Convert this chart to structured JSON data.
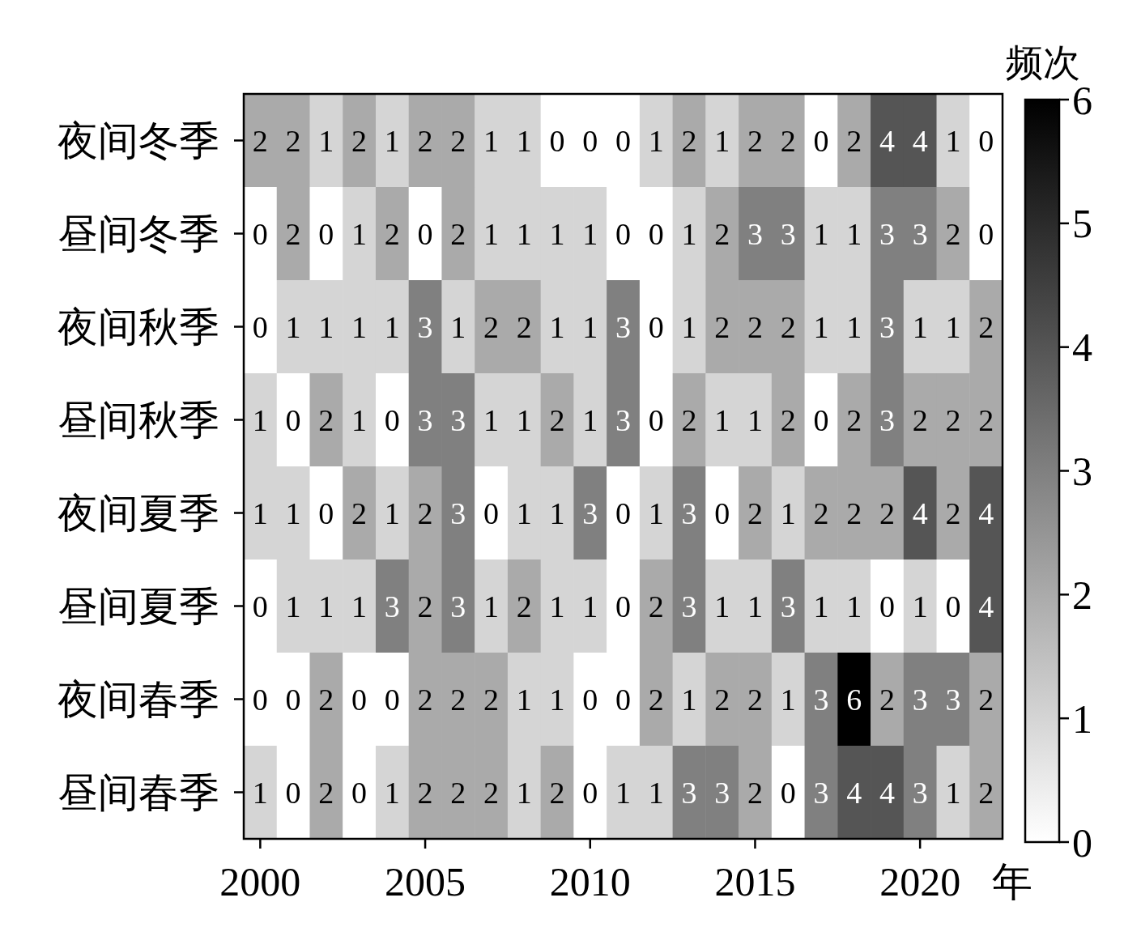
{
  "chart_data": {
    "type": "heatmap",
    "xlabel": "年",
    "clabel": "频次",
    "categories": [
      "2000",
      null,
      null,
      null,
      null,
      "2005",
      null,
      null,
      null,
      null,
      "2010",
      null,
      null,
      null,
      null,
      "2015",
      null,
      null,
      null,
      null,
      "2020",
      null,
      null
    ],
    "y_categories": [
      "夜间冬季",
      "昼间冬季",
      "夜间秋季",
      "昼间秋季",
      "夜间夏季",
      "昼间夏季",
      "夜间春季",
      "昼间春季"
    ],
    "cells": [
      [
        2,
        2,
        1,
        2,
        1,
        2,
        2,
        1,
        1,
        0,
        0,
        0,
        1,
        2,
        1,
        2,
        2,
        0,
        2,
        4,
        4,
        1,
        0
      ],
      [
        0,
        2,
        0,
        1,
        2,
        0,
        2,
        1,
        1,
        1,
        1,
        0,
        0,
        1,
        2,
        3,
        3,
        1,
        1,
        3,
        3,
        2,
        0
      ],
      [
        0,
        1,
        1,
        1,
        1,
        3,
        1,
        2,
        2,
        1,
        1,
        3,
        0,
        1,
        2,
        2,
        2,
        1,
        1,
        3,
        1,
        1,
        2
      ],
      [
        1,
        0,
        2,
        1,
        0,
        3,
        3,
        1,
        1,
        2,
        1,
        3,
        0,
        2,
        1,
        1,
        2,
        0,
        2,
        3,
        2,
        2,
        2
      ],
      [
        1,
        1,
        0,
        2,
        1,
        2,
        3,
        0,
        1,
        1,
        3,
        0,
        1,
        3,
        0,
        2,
        1,
        2,
        2,
        2,
        4,
        2,
        4
      ],
      [
        0,
        1,
        1,
        1,
        3,
        2,
        3,
        1,
        2,
        1,
        1,
        0,
        2,
        3,
        1,
        1,
        3,
        1,
        1,
        0,
        1,
        0,
        4
      ],
      [
        0,
        0,
        2,
        0,
        0,
        2,
        2,
        2,
        1,
        1,
        0,
        0,
        2,
        1,
        2,
        2,
        1,
        3,
        6,
        2,
        3,
        3,
        2
      ],
      [
        1,
        0,
        2,
        0,
        1,
        2,
        2,
        2,
        1,
        2,
        0,
        1,
        1,
        3,
        3,
        2,
        0,
        3,
        4,
        4,
        3,
        1,
        2
      ]
    ],
    "clim": [
      0,
      6
    ],
    "cticks": [
      0,
      1,
      2,
      3,
      4,
      5,
      6
    ],
    "data_labels": true
  }
}
